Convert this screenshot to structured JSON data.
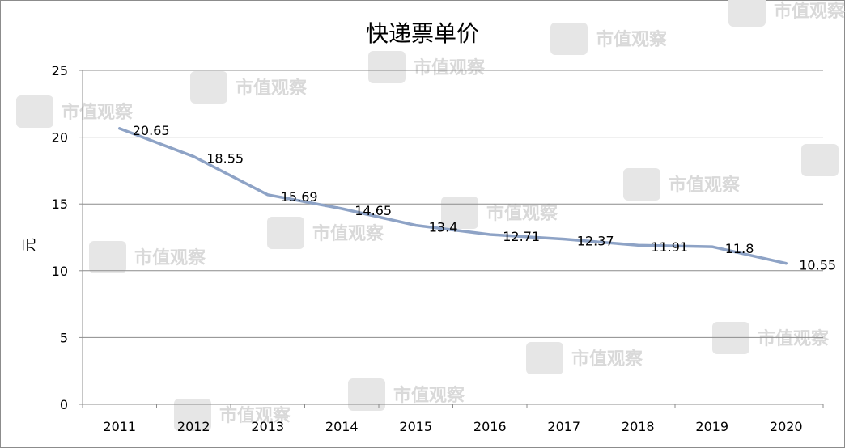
{
  "chart_data": {
    "type": "line",
    "title": "快递票单价",
    "ylabel": "元",
    "xlabel": "",
    "categories": [
      "2011",
      "2012",
      "2013",
      "2014",
      "2015",
      "2016",
      "2017",
      "2018",
      "2019",
      "2020"
    ],
    "series": [
      {
        "values": [
          20.65,
          18.55,
          15.69,
          14.65,
          13.4,
          12.71,
          12.37,
          11.91,
          11.8,
          10.55
        ],
        "color": "#8ea3c6"
      }
    ],
    "ylim": [
      0,
      25
    ],
    "yticks": [
      "0",
      "5",
      "10",
      "15",
      "20",
      "25"
    ],
    "grid": true,
    "legend": "none"
  },
  "watermark": {
    "text": "市值观察"
  }
}
